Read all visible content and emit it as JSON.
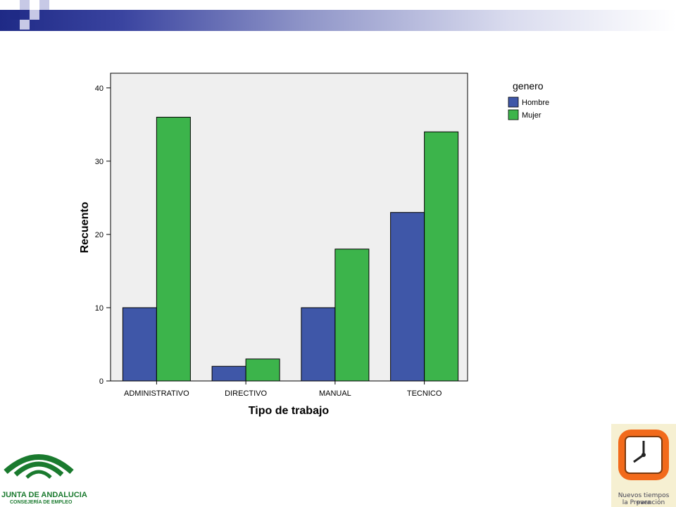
{
  "chart_data": {
    "type": "bar",
    "categories": [
      "ADMINISTRATIVO",
      "DIRECTIVO",
      "MANUAL",
      "TECNICO"
    ],
    "series": [
      {
        "name": "Hombre",
        "values": [
          10,
          2,
          10,
          23
        ],
        "color": "#3f57a8"
      },
      {
        "name": "Mujer",
        "values": [
          36,
          3,
          18,
          34
        ],
        "color": "#3cb44b"
      }
    ],
    "xlabel": "Tipo de trabajo",
    "ylabel": "Recuento",
    "ylim": [
      0,
      42
    ],
    "yticks": [
      0,
      10,
      20,
      30,
      40
    ],
    "legend_title": "genero",
    "legend_position": "right",
    "plot_background": "#efefef"
  },
  "footer": {
    "left_logo_line1": "JUNTA DE ANDALUCIA",
    "left_logo_line2": "CONSEJERÍA DE EMPLEO",
    "right_logo_line1": "Nuevos tiempos para",
    "right_logo_line2": "la Prevención"
  },
  "colors": {
    "header_dark": "#1f2a86",
    "logo_green": "#1a7a2e",
    "clock_orange": "#f26a1b"
  }
}
